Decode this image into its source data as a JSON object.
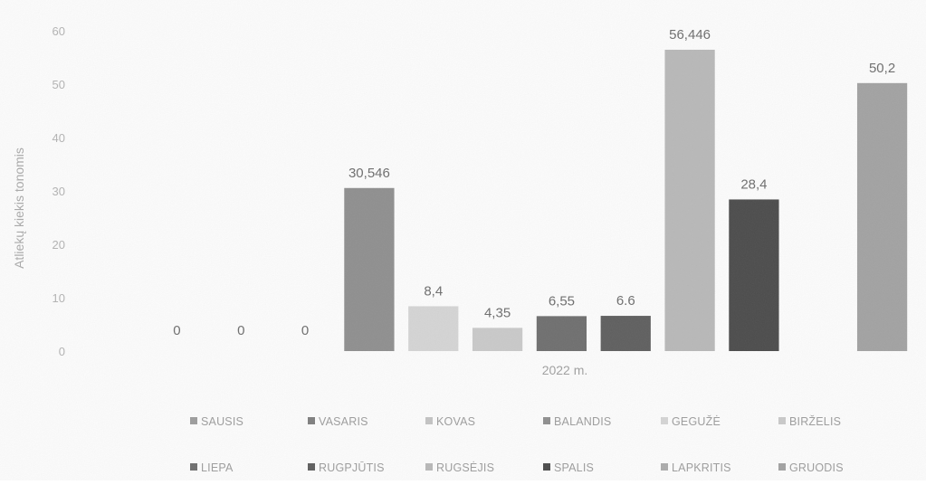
{
  "chart_data": {
    "type": "bar",
    "title": "",
    "xlabel": "",
    "ylabel": "Atliekų kiekis tonomis",
    "categories": [
      "2022 m."
    ],
    "ylim": [
      0,
      60
    ],
    "yticks": [
      "0",
      "10",
      "20",
      "30",
      "40",
      "50",
      "60"
    ],
    "grid": false,
    "legend_position": "bottom",
    "series": [
      {
        "name": "SAUSIS",
        "values": [
          0
        ],
        "label": "0",
        "color": "#9d9d9d"
      },
      {
        "name": "VASARIS",
        "values": [
          0
        ],
        "label": "0",
        "color": "#7f7f7f"
      },
      {
        "name": "KOVAS",
        "values": [
          0
        ],
        "label": "0",
        "color": "#c3c3c3"
      },
      {
        "name": "BALANDIS",
        "values": [
          30.546
        ],
        "label": "30,546",
        "color": "#8f8f8f"
      },
      {
        "name": "GEGUŽĖ",
        "values": [
          8.4
        ],
        "label": "8,4",
        "color": "#d4d4d4"
      },
      {
        "name": "BIRŽELIS",
        "values": [
          4.35
        ],
        "label": "4,35",
        "color": "#c9c9c9"
      },
      {
        "name": "LIEPA",
        "values": [
          6.55
        ],
        "label": "6,55",
        "color": "#6f6f6f"
      },
      {
        "name": "RUGPJŪTIS",
        "values": [
          6.6
        ],
        "label": "6.6",
        "color": "#5f5f5f"
      },
      {
        "name": "RUGSĖJIS",
        "values": [
          56.446
        ],
        "label": "56,446",
        "color": "#b8b8b8"
      },
      {
        "name": "SPALIS",
        "values": [
          28.4
        ],
        "label": "28,4",
        "color": "#4c4c4c"
      },
      {
        "name": "LAPKRITIS",
        "values": [
          0
        ],
        "label": "",
        "color": "#ababab",
        "hidden": true
      },
      {
        "name": "GRUODIS",
        "values": [
          50.2
        ],
        "label": "50,2",
        "color": "#a2a2a2"
      }
    ]
  }
}
